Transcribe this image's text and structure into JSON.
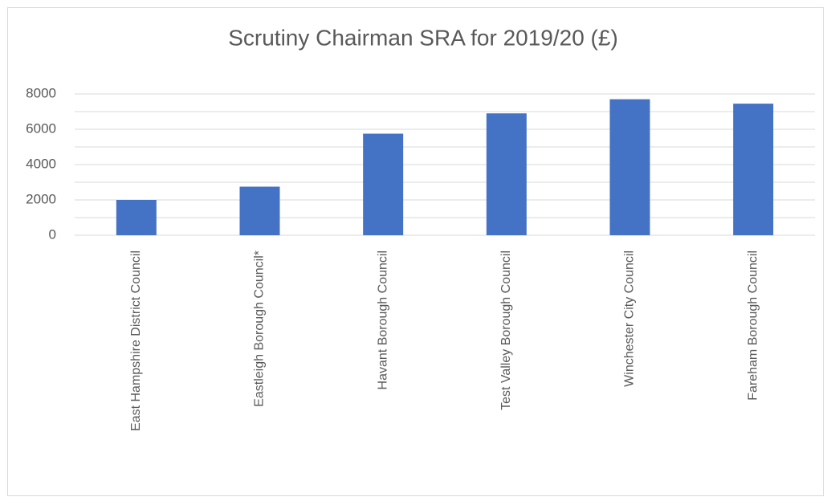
{
  "chart_data": {
    "type": "bar",
    "title": "Scrutiny Chairman SRA for 2019/20 (£)",
    "categories": [
      "East Hampshire District Council",
      "Eastleigh Borough Council*",
      "Havant Borough Council",
      "Test Valley Borough Council",
      "Winchester City Council",
      "Fareham Borough Council"
    ],
    "values": [
      2000,
      2750,
      5750,
      6900,
      7700,
      7450
    ],
    "color": "#4472c4",
    "ylim": [
      0,
      8000
    ],
    "yticks": [
      0,
      2000,
      4000,
      6000,
      8000
    ],
    "ygrid": [
      0,
      1000,
      2000,
      3000,
      4000,
      5000,
      6000,
      7000,
      8000
    ],
    "grid": true
  }
}
